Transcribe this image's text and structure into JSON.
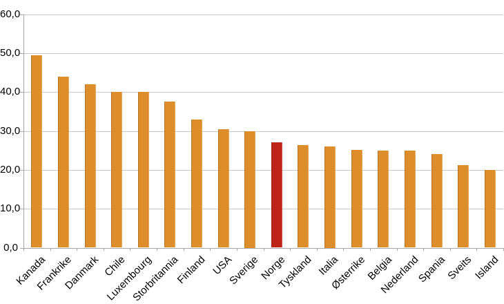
{
  "chart_data": {
    "type": "bar",
    "title": "",
    "xlabel": "",
    "ylabel": "",
    "categories": [
      "Kanada",
      "Frankrike",
      "Danmark",
      "Chile",
      "Luxembourg",
      "Storbritannia",
      "Finland",
      "USA",
      "Sverige",
      "Norge",
      "Tyskland",
      "Italia",
      "Østerrike",
      "Belgia",
      "Nederland",
      "Spania",
      "Sveits",
      "Island"
    ],
    "values": [
      49.5,
      44.0,
      42.0,
      40.0,
      40.0,
      37.5,
      33.0,
      30.5,
      30.0,
      27.0,
      26.4,
      26.0,
      25.1,
      25.0,
      25.0,
      24.0,
      21.2,
      20.0
    ],
    "highlight": {
      "category": "Norge",
      "index": 9
    },
    "ylim": [
      0,
      60
    ],
    "ytick_step": 10,
    "ytick_labels": [
      "0,0",
      "10,0",
      "20,0",
      "30,0",
      "40,0",
      "50,0",
      "60,0"
    ],
    "grid": true,
    "legend": false,
    "colors": {
      "bar": "#DE8D2B",
      "highlight_bar": "#BE2318",
      "gridline": "#C8C8C8",
      "axis": "#A6A6A6",
      "label": "#000000",
      "background": "#FFFFFF"
    }
  }
}
